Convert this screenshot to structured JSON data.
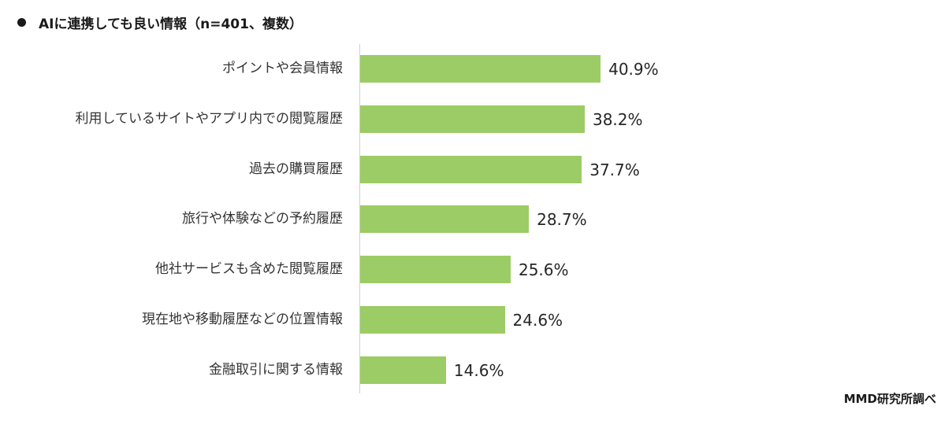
{
  "title": "AIに連携しても良い情報（n=401、複数）",
  "source": "MMD研究所調べ",
  "bar_color": "#9ccc65",
  "rows": [
    {
      "label": "ポイントや会員情報",
      "value": 40.9,
      "value_text": "40.9%"
    },
    {
      "label": "利用しているサイトやアプリ内での閲覧履歴",
      "value": 38.2,
      "value_text": "38.2%"
    },
    {
      "label": "過去の購買履歴",
      "value": 37.7,
      "value_text": "37.7%"
    },
    {
      "label": "旅行や体験などの予約履歴",
      "value": 28.7,
      "value_text": "28.7%"
    },
    {
      "label": "他社サービスも含めた閲覧履歴",
      "value": 25.6,
      "value_text": "25.6%"
    },
    {
      "label": "現在地や移動履歴などの位置情報",
      "value": 24.6,
      "value_text": "24.6%"
    },
    {
      "label": "金融取引に関する情報",
      "value": 14.6,
      "value_text": "14.6%"
    }
  ],
  "chart_data": {
    "type": "bar",
    "orientation": "horizontal",
    "title": "AIに連携しても良い情報（n=401、複数）",
    "categories": [
      "ポイントや会員情報",
      "利用しているサイトやアプリ内での閲覧履歴",
      "過去の購買履歴",
      "旅行や体験などの予約履歴",
      "他社サービスも含めた閲覧履歴",
      "現在地や移動履歴などの位置情報",
      "金融取引に関する情報"
    ],
    "values": [
      40.9,
      38.2,
      37.7,
      28.7,
      25.6,
      24.6,
      14.6
    ],
    "unit": "%",
    "xlabel": "",
    "ylabel": "",
    "grid": false,
    "legend": null,
    "annotations": [
      "MMD研究所調べ"
    ],
    "colors": [
      "#9ccc65"
    ]
  }
}
